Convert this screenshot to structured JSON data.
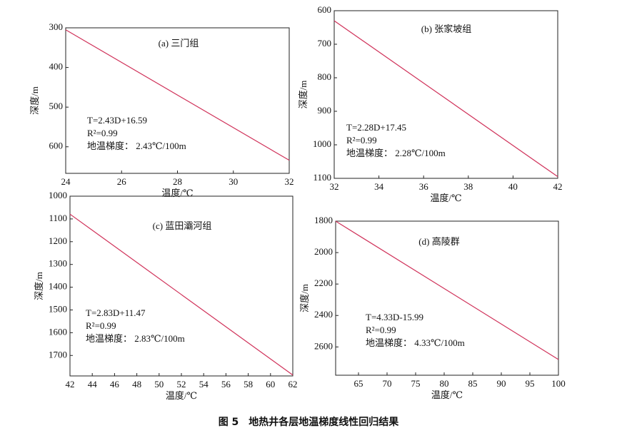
{
  "figure_caption": "图 5　地热井各层地温梯度线性回归结果",
  "chart_data": [
    {
      "type": "line",
      "title": "(a) 三门组",
      "x_label": "温度/℃",
      "y_label": "深度/m",
      "x": [
        24,
        32
      ],
      "values": [
        305,
        634
      ],
      "color": "#d0325a",
      "xlim": [
        24,
        32
      ],
      "xticks": [
        24,
        26,
        28,
        30,
        32
      ],
      "ylim": [
        300,
        667
      ],
      "yticks": [
        300,
        400,
        500,
        600
      ],
      "annotations": [
        "T=2.43D+16.59",
        "R²=0.99",
        "地温梯度：  2.43℃/100m"
      ]
    },
    {
      "type": "line",
      "title": "(b) 张家坡组",
      "x_label": "温度/℃",
      "y_label": "深度/m",
      "x": [
        32,
        42
      ],
      "values": [
        630,
        1095
      ],
      "color": "#d0325a",
      "xlim": [
        32,
        42
      ],
      "xticks": [
        32,
        34,
        36,
        38,
        40,
        42
      ],
      "ylim": [
        600,
        1100
      ],
      "yticks": [
        600,
        700,
        800,
        900,
        1000,
        1100
      ],
      "annotations": [
        "T=2.28D+17.45",
        "R²=0.99",
        "地温梯度：  2.28℃/100m"
      ]
    },
    {
      "type": "line",
      "title": "(c) 蓝田灞河组",
      "x_label": "温度/℃",
      "y_label": "深度/m",
      "x": [
        42,
        62
      ],
      "values": [
        1079,
        1786
      ],
      "color": "#d0325a",
      "xlim": [
        42,
        62
      ],
      "xticks": [
        42,
        44,
        46,
        48,
        50,
        52,
        54,
        56,
        58,
        60,
        62
      ],
      "ylim": [
        1000,
        1790
      ],
      "yticks": [
        1000,
        1100,
        1200,
        1300,
        1400,
        1500,
        1600,
        1700
      ],
      "annotations": [
        "T=2.83D+11.47",
        "R²=0.99",
        "地温梯度：  2.83℃/100m"
      ]
    },
    {
      "type": "line",
      "title": "(d) 高陵群",
      "x_label": "温度/℃",
      "y_label": "深度/m",
      "x": [
        61,
        100
      ],
      "values": [
        1800,
        2680
      ],
      "color": "#d0325a",
      "xlim": [
        61,
        100
      ],
      "xticks": [
        65,
        70,
        75,
        80,
        85,
        90,
        95,
        100
      ],
      "ylim": [
        1800,
        2780
      ],
      "yticks": [
        1800,
        2000,
        2200,
        2400,
        2600
      ],
      "annotations": [
        "T=4.33D-15.99",
        "R²=0.99",
        "地温梯度：  4.33℃/100m"
      ]
    }
  ]
}
